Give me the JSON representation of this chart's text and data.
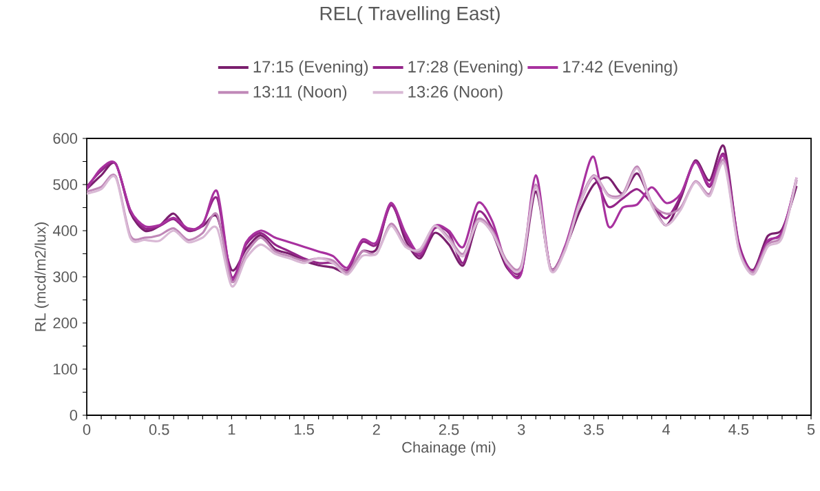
{
  "chart_data": {
    "type": "line",
    "title": "REL( Travelling East)",
    "xlabel": "Chainage (mi)",
    "ylabel": "RL (mcd/m2/lux)",
    "x": [
      0,
      0.1,
      0.2,
      0.3,
      0.4,
      0.5,
      0.6,
      0.7,
      0.8,
      0.9,
      1.0,
      1.1,
      1.2,
      1.3,
      1.4,
      1.5,
      1.6,
      1.7,
      1.8,
      1.9,
      2.0,
      2.1,
      2.2,
      2.3,
      2.4,
      2.5,
      2.6,
      2.7,
      2.8,
      2.9,
      3.0,
      3.1,
      3.2,
      3.3,
      3.4,
      3.5,
      3.6,
      3.7,
      3.8,
      3.9,
      4.0,
      4.1,
      4.2,
      4.3,
      4.4,
      4.5,
      4.6,
      4.7,
      4.8,
      4.9
    ],
    "series": [
      {
        "name": "17:15 (Evening)",
        "color": "#7a1f6e",
        "values": [
          490,
          520,
          545,
          440,
          400,
          410,
          437,
          400,
          410,
          430,
          315,
          360,
          390,
          360,
          350,
          335,
          325,
          320,
          310,
          355,
          360,
          460,
          380,
          340,
          395,
          370,
          325,
          420,
          395,
          320,
          310,
          485,
          320,
          360,
          440,
          500,
          515,
          480,
          524,
          460,
          412,
          470,
          552,
          509,
          582,
          370,
          315,
          388,
          403,
          497
        ]
      },
      {
        "name": "17:28 (Evening)",
        "color": "#942589",
        "values": [
          495,
          530,
          545,
          445,
          405,
          410,
          425,
          400,
          415,
          470,
          300,
          370,
          395,
          370,
          355,
          340,
          330,
          330,
          315,
          375,
          370,
          455,
          390,
          345,
          405,
          395,
          330,
          440,
          405,
          330,
          315,
          495,
          320,
          360,
          455,
          515,
          452,
          470,
          490,
          460,
          427,
          475,
          550,
          495,
          565,
          375,
          312,
          375,
          398,
          510
        ]
      },
      {
        "name": "17:42 (Evening)",
        "color": "#a8319f",
        "values": [
          490,
          535,
          545,
          445,
          410,
          412,
          428,
          405,
          412,
          485,
          295,
          375,
          400,
          385,
          375,
          365,
          355,
          345,
          320,
          380,
          375,
          460,
          395,
          350,
          410,
          400,
          365,
          460,
          420,
          325,
          308,
          520,
          318,
          365,
          470,
          560,
          410,
          450,
          457,
          494,
          460,
          480,
          548,
          500,
          560,
          368,
          312,
          378,
          395,
          515
        ]
      },
      {
        "name": "13:11 (Noon)",
        "color": "#c088b8",
        "values": [
          485,
          495,
          518,
          390,
          385,
          390,
          405,
          380,
          395,
          435,
          290,
          350,
          385,
          355,
          345,
          335,
          340,
          335,
          310,
          355,
          350,
          415,
          370,
          355,
          410,
          385,
          350,
          425,
          400,
          335,
          325,
          500,
          320,
          360,
          460,
          520,
          478,
          480,
          539,
          460,
          437,
          450,
          507,
          480,
          552,
          362,
          310,
          370,
          390,
          510
        ]
      },
      {
        "name": "13:26 (Noon)",
        "color": "#d9b9d5",
        "values": [
          480,
          490,
          515,
          385,
          380,
          378,
          400,
          375,
          385,
          405,
          280,
          340,
          370,
          350,
          340,
          330,
          340,
          330,
          305,
          345,
          350,
          410,
          365,
          360,
          410,
          380,
          345,
          420,
          395,
          330,
          320,
          495,
          315,
          355,
          455,
          518,
          475,
          476,
          535,
          455,
          412,
          445,
          505,
          475,
          545,
          360,
          305,
          365,
          385,
          515
        ]
      }
    ],
    "xlim": [
      0,
      5
    ],
    "xticks": [
      0,
      0.5,
      1,
      1.5,
      2,
      2.5,
      3,
      3.5,
      4,
      4.5,
      5
    ],
    "ylim": [
      0,
      600
    ],
    "yticks": [
      0,
      100,
      200,
      300,
      400,
      500,
      600
    ],
    "legend": "top",
    "marker": "none",
    "line_style": "solid"
  }
}
